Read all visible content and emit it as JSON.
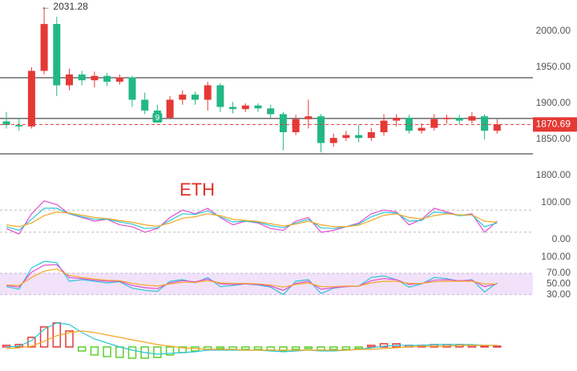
{
  "chart_data": [
    {
      "type": "candlestick",
      "label": "ETH",
      "label_color": "#e0302a",
      "up_color": "#e53935",
      "down_color": "#22b885",
      "open": [
        1875,
        1870,
        1868,
        1945,
        2010,
        1925,
        1940,
        1932,
        1938,
        1930,
        1936,
        1905,
        1890,
        1880,
        1905,
        1912,
        1905,
        1925,
        1895,
        1892,
        1897,
        1893,
        1885,
        1860,
        1878,
        1882,
        1845,
        1852,
        1856,
        1852,
        1860,
        1876,
        1880,
        1862,
        1866,
        1878,
        1880,
        1876,
        1882,
        1862
      ],
      "high": [
        1888,
        1880,
        1950,
        2031.28,
        2020,
        1948,
        1945,
        1944,
        1942,
        1940,
        1938,
        1915,
        1898,
        1910,
        1918,
        1916,
        1930,
        1928,
        1902,
        1900,
        1900,
        1898,
        1888,
        1884,
        1905,
        1885,
        1858,
        1862,
        1870,
        1866,
        1885,
        1885,
        1884,
        1872,
        1885,
        1884,
        1884,
        1888,
        1885,
        1878
      ],
      "low": [
        1865,
        1862,
        1865,
        1940,
        1910,
        1918,
        1925,
        1922,
        1924,
        1926,
        1895,
        1885,
        1875,
        1878,
        1898,
        1898,
        1890,
        1888,
        1886,
        1888,
        1888,
        1880,
        1835,
        1856,
        1865,
        1832,
        1840,
        1848,
        1846,
        1848,
        1855,
        1868,
        1858,
        1858,
        1862,
        1872,
        1870,
        1872,
        1850,
        1858
      ],
      "close": [
        1870,
        1868,
        1945,
        2010,
        1925,
        1940,
        1932,
        1938,
        1930,
        1936,
        1905,
        1890,
        1880,
        1905,
        1912,
        1905,
        1925,
        1895,
        1892,
        1897,
        1893,
        1885,
        1860,
        1878,
        1882,
        1845,
        1852,
        1856,
        1852,
        1860,
        1876,
        1880,
        1862,
        1866,
        1878,
        1880,
        1876,
        1882,
        1862,
        1870.69
      ],
      "max_marker": {
        "value": 2031.28,
        "label": "← 2031.28"
      },
      "signal_marker": {
        "index": 12,
        "label": "9",
        "color": "#22b885"
      },
      "levels": [
        1935.5,
        1879,
        1830
      ],
      "level_color": "#222222",
      "current_price": 1870.69,
      "current_color": "#e53935",
      "ylim": [
        1780,
        2041
      ],
      "yticks": [
        {
          "value": 2000,
          "label": "2000.00"
        },
        {
          "value": 1950,
          "label": "1950.00"
        },
        {
          "value": 1900,
          "label": "1900.00"
        },
        {
          "value": 1850,
          "label": "1850.00"
        },
        {
          "value": 1800,
          "label": "1800.00"
        }
      ]
    },
    {
      "type": "line",
      "guide_lines": [
        80,
        20
      ],
      "series": [
        {
          "color": "#e24fd0",
          "values": [
            30,
            15,
            70,
            105,
            95,
            70,
            60,
            50,
            55,
            40,
            35,
            20,
            30,
            60,
            80,
            70,
            85,
            60,
            40,
            50,
            45,
            30,
            25,
            50,
            60,
            20,
            25,
            35,
            45,
            70,
            80,
            75,
            40,
            55,
            85,
            75,
            65,
            70,
            20,
            50
          ]
        },
        {
          "color": "#2cc6d6",
          "values": [
            35,
            25,
            55,
            85,
            85,
            70,
            62,
            55,
            55,
            48,
            42,
            30,
            32,
            52,
            70,
            68,
            78,
            62,
            48,
            50,
            47,
            38,
            32,
            45,
            55,
            32,
            30,
            35,
            42,
            62,
            74,
            72,
            50,
            52,
            75,
            72,
            65,
            67,
            35,
            45
          ]
        },
        {
          "color": "#f5a623",
          "values": [
            40,
            35,
            45,
            65,
            75,
            72,
            66,
            60,
            57,
            52,
            47,
            40,
            36,
            45,
            58,
            62,
            70,
            65,
            55,
            52,
            49,
            43,
            37,
            42,
            50,
            40,
            35,
            35,
            39,
            52,
            66,
            70,
            60,
            56,
            65,
            70,
            67,
            67,
            50,
            47
          ]
        }
      ],
      "ylim": [
        -13,
        113
      ],
      "yticks": [
        {
          "value": 100,
          "label": "100.00"
        },
        {
          "value": 0,
          "label": "0.00"
        }
      ]
    },
    {
      "type": "line",
      "band": [
        30,
        70
      ],
      "band_color": "#f1e2fa",
      "series": [
        {
          "color": "#2cc6d6",
          "values": [
            45,
            40,
            80,
            92,
            90,
            55,
            58,
            55,
            52,
            54,
            42,
            38,
            36,
            55,
            58,
            52,
            62,
            45,
            47,
            50,
            48,
            44,
            30,
            55,
            58,
            32,
            42,
            45,
            46,
            62,
            65,
            58,
            44,
            50,
            62,
            60,
            55,
            58,
            35,
            52
          ]
        },
        {
          "color": "#e24fd0",
          "values": [
            47,
            44,
            72,
            85,
            86,
            62,
            60,
            57,
            55,
            55,
            47,
            43,
            41,
            52,
            56,
            54,
            59,
            50,
            49,
            50,
            49,
            46,
            38,
            51,
            55,
            40,
            43,
            45,
            46,
            56,
            60,
            58,
            49,
            51,
            57,
            58,
            56,
            57,
            45,
            50
          ]
        },
        {
          "color": "#f5a623",
          "values": [
            48,
            47,
            62,
            74,
            78,
            66,
            62,
            59,
            57,
            56,
            51,
            48,
            46,
            50,
            53,
            53,
            56,
            52,
            51,
            51,
            50,
            48,
            44,
            49,
            52,
            45,
            45,
            46,
            46,
            52,
            55,
            55,
            51,
            51,
            54,
            55,
            55,
            55,
            50,
            50
          ]
        }
      ],
      "ylim": [
        22,
        109
      ],
      "yticks": [
        {
          "value": 100,
          "label": "100.00"
        },
        {
          "value": 70,
          "label": "70.00"
        },
        {
          "value": 50,
          "label": "50.00"
        },
        {
          "value": 30,
          "label": "30.00"
        }
      ]
    },
    {
      "type": "macd",
      "up_color": "#e53935",
      "down_color": "#5ccf2e",
      "histogram": [
        2,
        3,
        12,
        25,
        30,
        20,
        -5,
        -10,
        -12,
        -13,
        -14,
        -14,
        -13,
        -10,
        -7,
        -5,
        -3,
        -2,
        -3,
        -3,
        -3,
        -4,
        -5,
        -3,
        -2,
        -4,
        -3,
        -3,
        -2,
        2,
        4,
        4,
        2,
        2,
        3,
        3,
        3,
        2,
        1,
        1
      ],
      "series": [
        {
          "color": "#2cc6d6",
          "values": [
            0,
            1,
            8,
            22,
            30,
            28,
            18,
            10,
            5,
            0,
            -4,
            -7,
            -9,
            -8,
            -7,
            -6,
            -4,
            -4,
            -4,
            -4,
            -4,
            -5,
            -6,
            -5,
            -4,
            -5,
            -5,
            -4,
            -3,
            -1,
            1,
            2,
            2,
            2,
            3,
            3,
            3,
            3,
            2,
            2
          ]
        },
        {
          "color": "#f5a623",
          "values": [
            -2,
            -1,
            1,
            7,
            14,
            18,
            20,
            18,
            15,
            12,
            9,
            6,
            3,
            1,
            -1,
            -2,
            -3,
            -3,
            -3,
            -4,
            -4,
            -4,
            -4,
            -4,
            -4,
            -4,
            -4,
            -4,
            -3,
            -3,
            -2,
            -1,
            0,
            1,
            1,
            1,
            2,
            2,
            2,
            2
          ]
        }
      ],
      "ylim": [
        -15,
        35
      ]
    }
  ]
}
